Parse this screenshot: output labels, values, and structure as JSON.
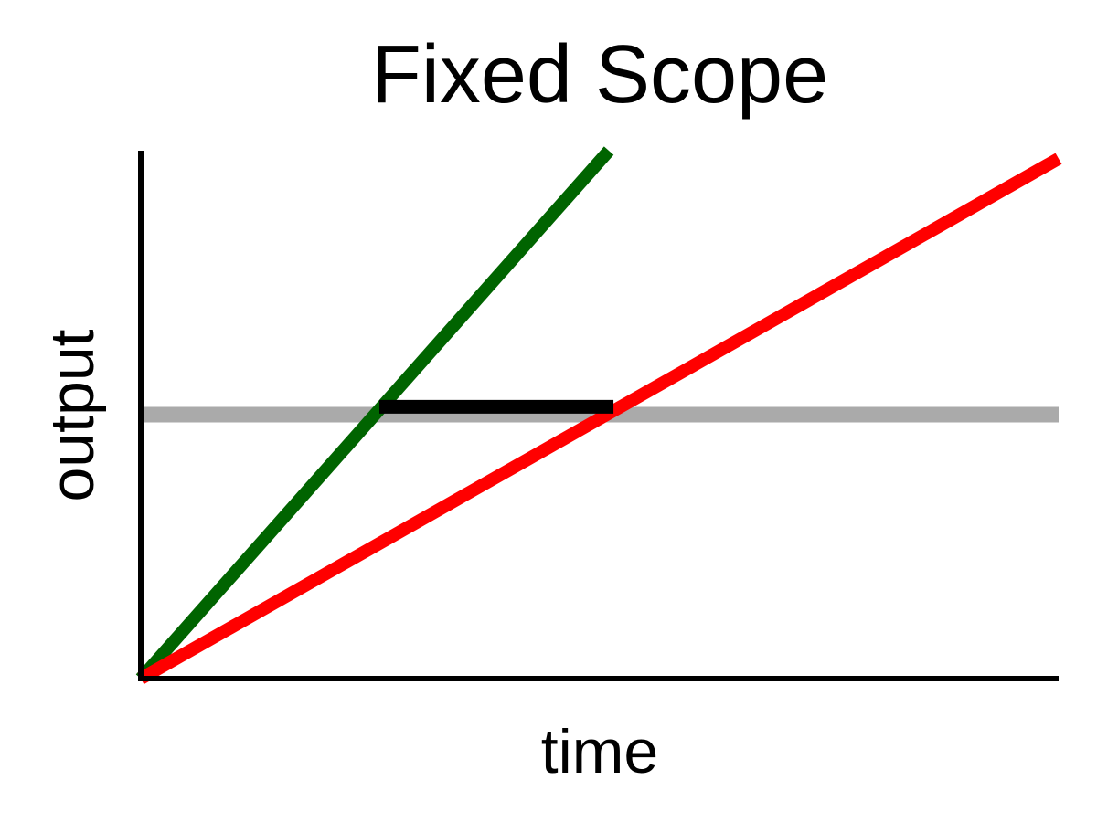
{
  "chart_data": {
    "type": "line",
    "title": "Fixed Scope",
    "xlabel": "time",
    "ylabel": "output",
    "xlim": [
      0,
      1
    ],
    "ylim": [
      0,
      1
    ],
    "grid": false,
    "legend": "none",
    "ticks": false,
    "series": [
      {
        "color": "#006400",
        "x": [
          0,
          0.51
        ],
        "y": [
          0,
          1
        ]
      },
      {
        "color": "#ff0000",
        "x": [
          0,
          1.0
        ],
        "y": [
          0,
          0.985
        ]
      }
    ],
    "annotations": [
      {
        "type": "horizontal-line",
        "y": 0.5,
        "color": "#aaaaaa"
      },
      {
        "type": "segment",
        "x": [
          0.26,
          0.515
        ],
        "y": [
          0.515,
          0.515
        ],
        "color": "#000000"
      }
    ]
  }
}
